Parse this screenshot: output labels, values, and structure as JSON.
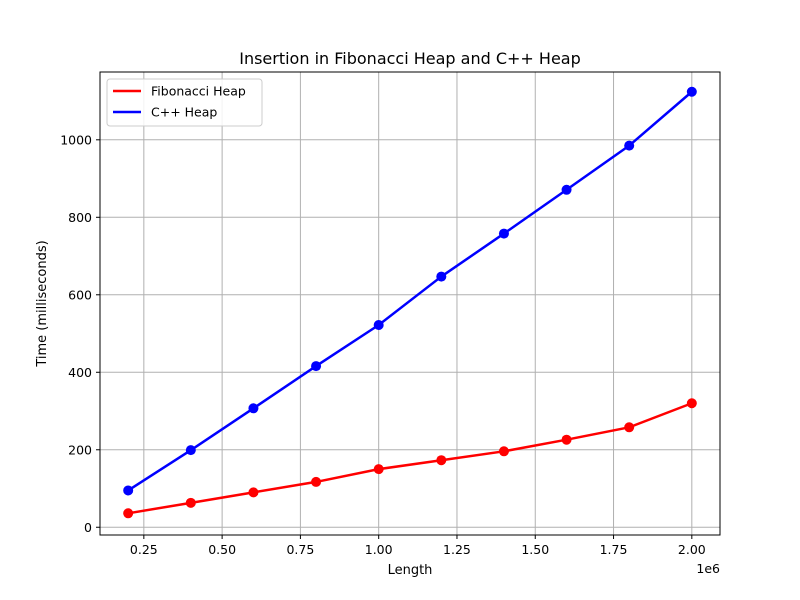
{
  "chart_data": {
    "type": "line",
    "title": "Insertion in Fibonacci Heap and C++ Heap",
    "xlabel": "Length",
    "ylabel": "Time (milliseconds)",
    "x_offset_label": "1e6",
    "xlim": [
      110000,
      2090000
    ],
    "ylim": [
      -20,
      1175
    ],
    "x_ticks": [
      250000,
      500000,
      750000,
      1000000,
      1250000,
      1500000,
      1750000,
      2000000
    ],
    "x_tick_labels": [
      "0.25",
      "0.50",
      "0.75",
      "1.00",
      "1.25",
      "1.50",
      "1.75",
      "2.00"
    ],
    "y_ticks": [
      0,
      200,
      400,
      600,
      800,
      1000
    ],
    "y_tick_labels": [
      "0",
      "200",
      "400",
      "600",
      "800",
      "1000"
    ],
    "grid": true,
    "legend_position": "upper-left",
    "x": [
      200000,
      400000,
      600000,
      800000,
      1000000,
      1200000,
      1400000,
      1600000,
      1800000,
      2000000
    ],
    "series": [
      {
        "name": "Fibonacci Heap",
        "color": "#ff0000",
        "values": [
          36,
          63,
          90,
          117,
          150,
          173,
          196,
          226,
          258,
          320
        ]
      },
      {
        "name": "C++ Heap",
        "color": "#0000ff",
        "values": [
          95,
          199,
          307,
          416,
          522,
          647,
          758,
          871,
          985,
          1124
        ]
      }
    ]
  }
}
